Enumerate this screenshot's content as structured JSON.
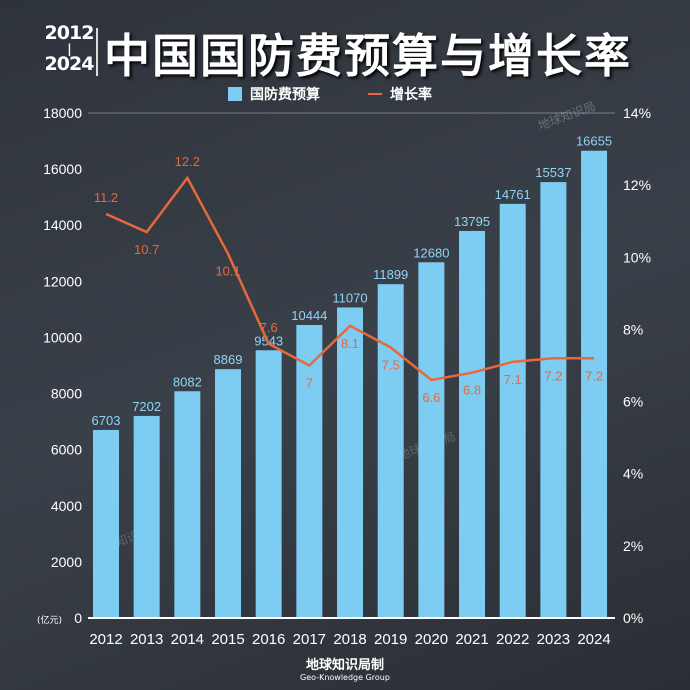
{
  "header": {
    "years_top": "2012",
    "years_sep": "|",
    "years_bottom": "2024",
    "title": "中国国防费预算与增长率"
  },
  "legend": {
    "bar_label": "国防费预算",
    "line_label": "增长率"
  },
  "watermark": "地球知识局",
  "footer": {
    "cn": "地球知识局制",
    "en": "Geo-Knowledge Group"
  },
  "chart_data": {
    "type": "bar+line",
    "title": "中国国防费预算与增长率",
    "categories": [
      "2012",
      "2013",
      "2014",
      "2015",
      "2016",
      "2017",
      "2018",
      "2019",
      "2020",
      "2021",
      "2022",
      "2023",
      "2024"
    ],
    "series": [
      {
        "name": "国防费预算",
        "type": "bar",
        "axis": "left",
        "color": "#7dcdf2",
        "values": [
          6703,
          7202,
          8082,
          8869,
          9543,
          10444,
          11070,
          11899,
          12680,
          13795,
          14761,
          15537,
          16655
        ]
      },
      {
        "name": "增长率",
        "type": "line",
        "axis": "right",
        "color": "#e8683c",
        "values": [
          11.2,
          10.7,
          12.2,
          10.1,
          7.6,
          7,
          8.1,
          7.5,
          6.6,
          6.8,
          7.1,
          7.2,
          7.2
        ]
      }
    ],
    "left_axis": {
      "unit": "(亿元)",
      "ylim": [
        0,
        18000
      ],
      "ticks": [
        0,
        2000,
        4000,
        6000,
        8000,
        10000,
        12000,
        14000,
        16000,
        18000
      ]
    },
    "right_axis": {
      "ylim": [
        0,
        14
      ],
      "ticks": [
        "0%",
        "2%",
        "4%",
        "6%",
        "8%",
        "10%",
        "12%",
        "14%"
      ]
    },
    "grid": false,
    "legend_position": "top-center"
  }
}
